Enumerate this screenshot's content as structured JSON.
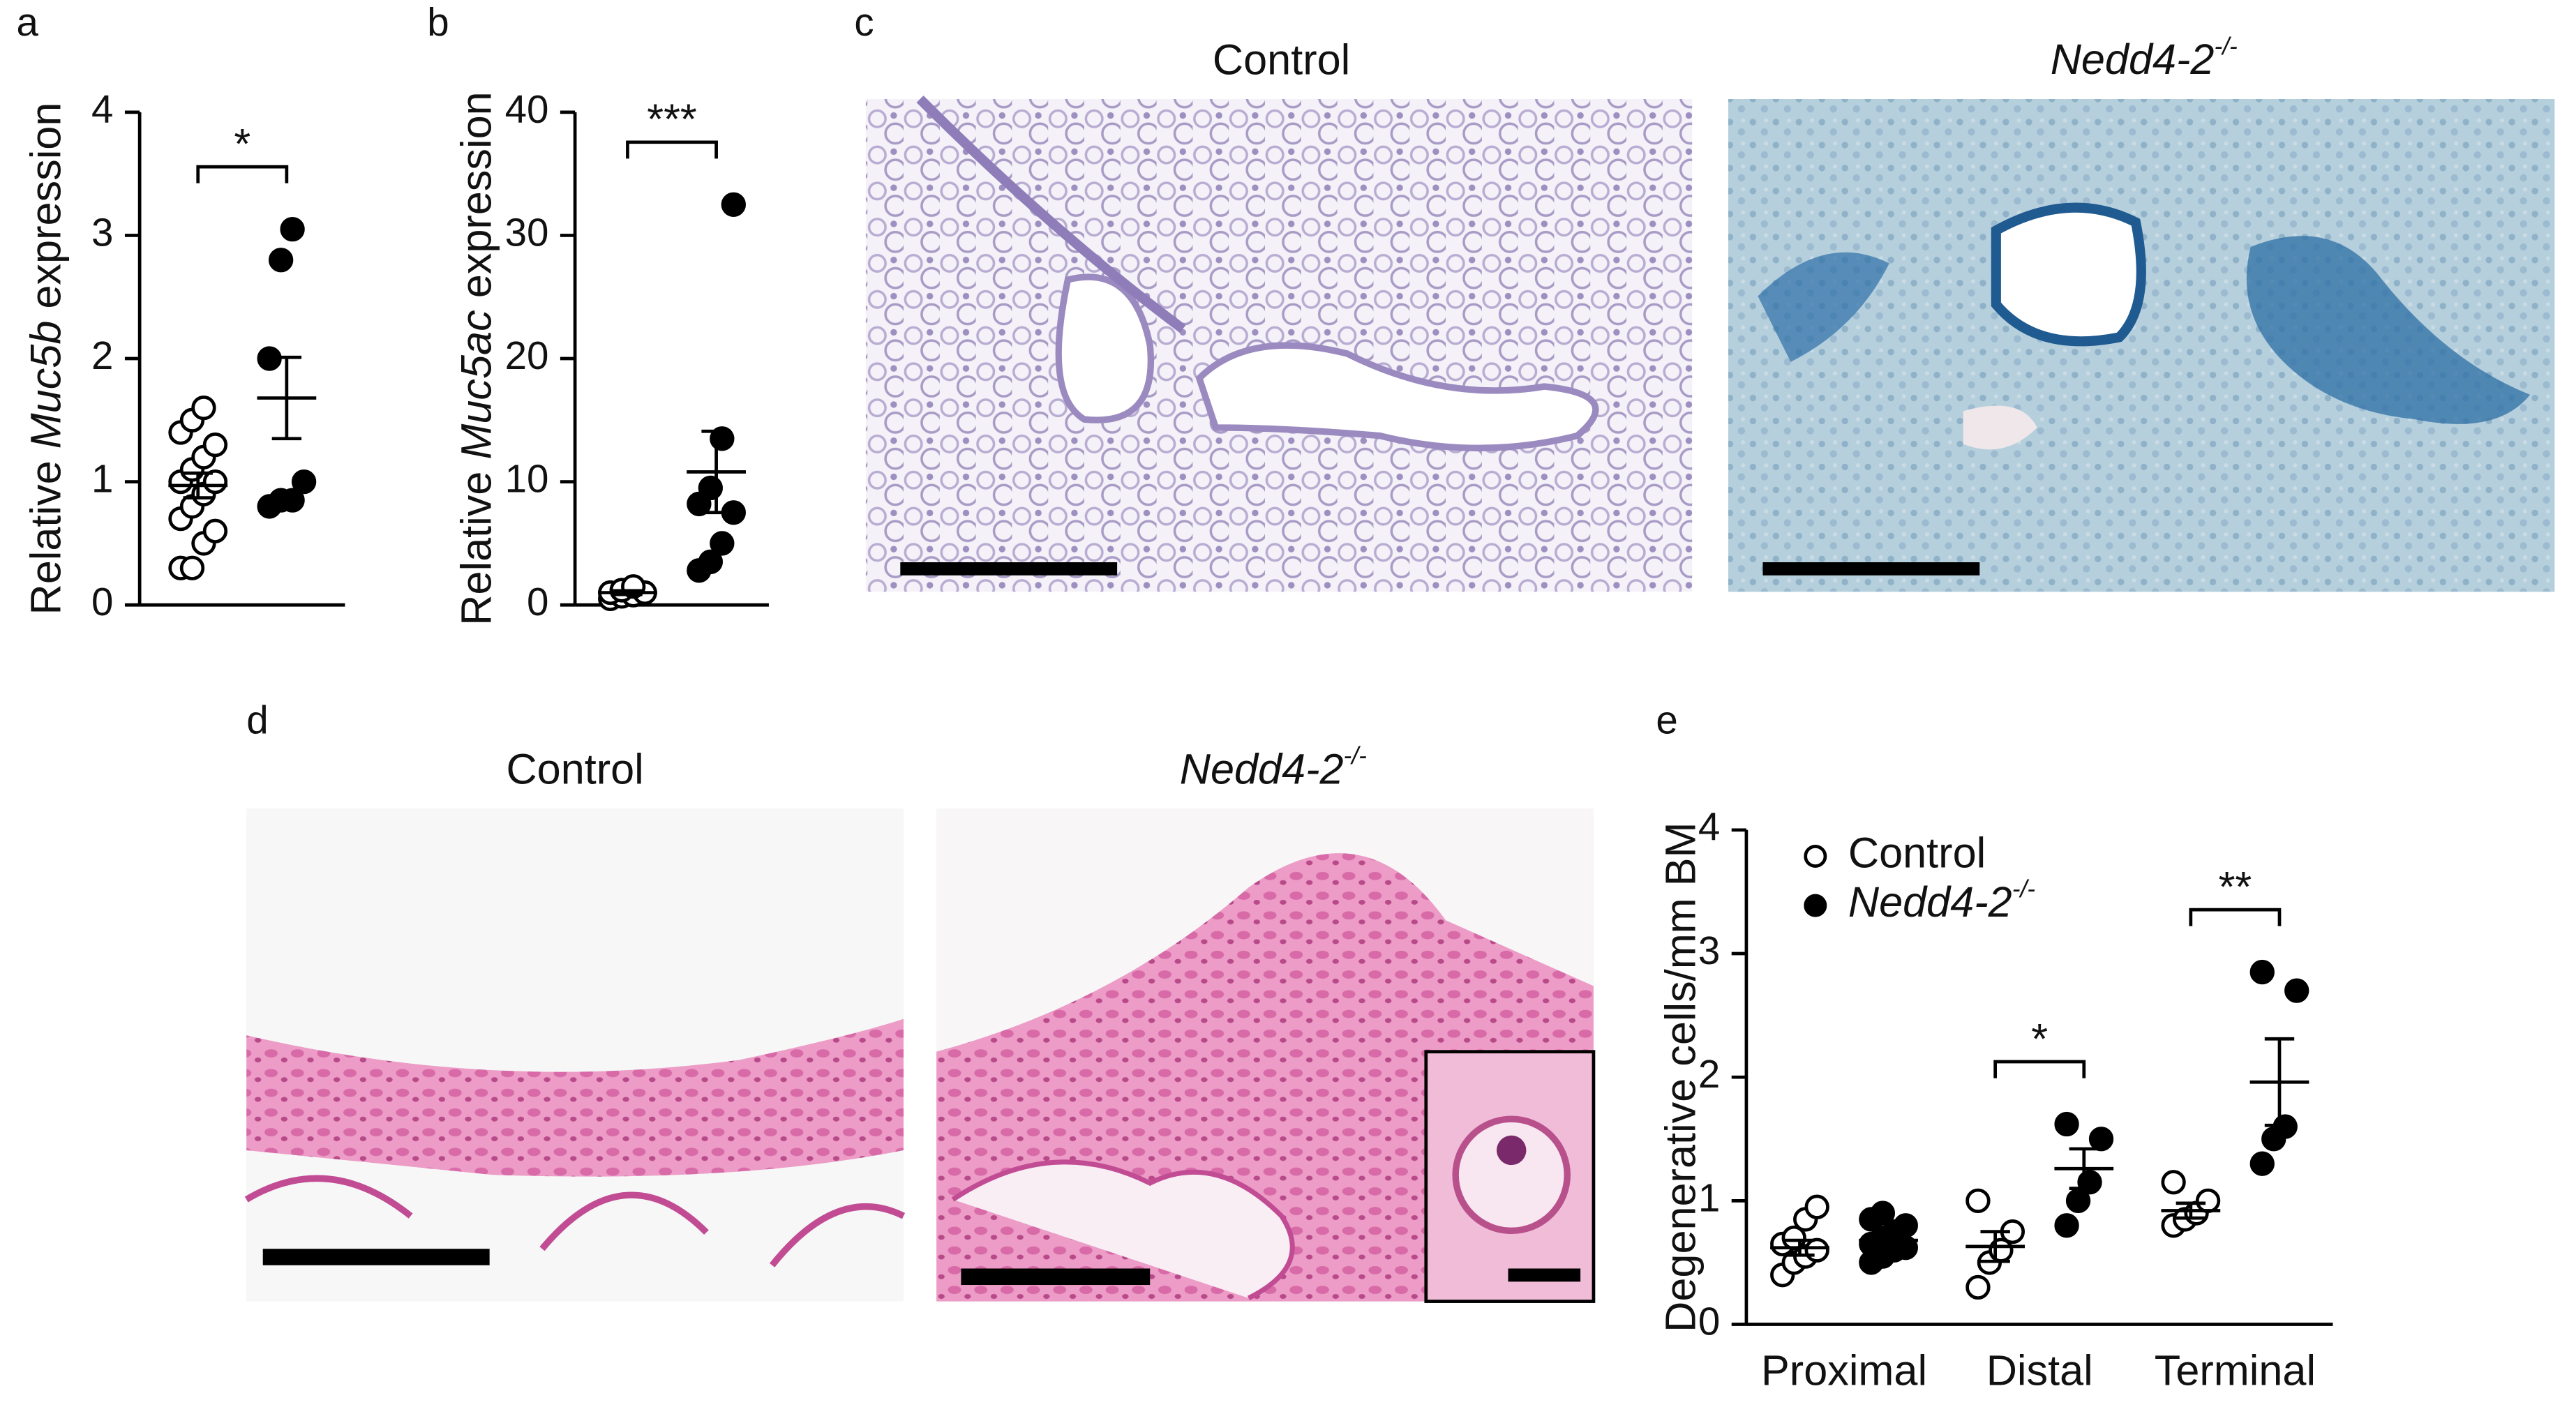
{
  "panel_labels": [
    "a",
    "b",
    "c",
    "d",
    "e"
  ],
  "images": {
    "c": {
      "titles": [
        "Control",
        "Nedd4-2-/-"
      ]
    },
    "d": {
      "titles": [
        "Control",
        "Nedd4-2-/-"
      ]
    }
  },
  "chart_data": [
    {
      "type": "dot",
      "y_label": "Relative Muc5b expression",
      "ylim": [
        0,
        4
      ],
      "yticks": [
        0,
        1,
        2,
        3,
        4
      ],
      "series": [
        {
          "fill": "#ffffff",
          "values": [
            [
              0.3,
              0.3,
              0.5,
              0.6,
              0.7,
              0.8,
              0.9,
              1.0,
              1.0,
              1.1,
              1.2,
              1.3,
              1.4,
              1.5,
              1.6
            ]
          ],
          "means": [
            0.97
          ],
          "sems": [
            0.1
          ]
        },
        {
          "fill": "#000000",
          "values": [
            [
              0.8,
              0.85,
              0.85,
              1.0,
              2.0,
              2.8,
              3.05
            ]
          ],
          "means": [
            1.68
          ],
          "sems": [
            0.33
          ]
        }
      ],
      "significance": [
        "*"
      ]
    },
    {
      "type": "dot",
      "y_label": "Relative Muc5ac expression",
      "ylim": [
        0,
        40
      ],
      "yticks": [
        0,
        10,
        20,
        30,
        40
      ],
      "series": [
        {
          "fill": "#ffffff",
          "values": [
            [
              0.5,
              0.7,
              0.8,
              1.0,
              1.0,
              1.2,
              1.5
            ]
          ],
          "means": [
            1.0
          ],
          "sems": [
            0.15
          ]
        },
        {
          "fill": "#000000",
          "values": [
            [
              2.8,
              3.5,
              5.0,
              7.5,
              8.2,
              9.5,
              13.5,
              32.5
            ]
          ],
          "means": [
            10.8
          ],
          "sems": [
            3.3
          ]
        }
      ],
      "significance": [
        "***"
      ]
    },
    {
      "type": "dot",
      "y_label": "Degenerative cells/mm BM",
      "ylim": [
        0,
        4
      ],
      "yticks": [
        0,
        1,
        2,
        3,
        4
      ],
      "categories": [
        "Proximal",
        "Distal",
        "Terminal"
      ],
      "series": [
        {
          "name": "Control",
          "fill": "#ffffff",
          "values": [
            [
              0.4,
              0.5,
              0.55,
              0.6,
              0.65,
              0.7,
              0.85,
              0.95
            ],
            [
              0.3,
              0.5,
              0.6,
              0.75,
              1.0
            ],
            [
              0.8,
              0.85,
              0.9,
              1.0,
              1.15
            ]
          ],
          "means": [
            0.62,
            0.63,
            0.92
          ],
          "sems": [
            0.06,
            0.12,
            0.06
          ]
        },
        {
          "name": "Nedd4-2-/-",
          "fill": "#000000",
          "values": [
            [
              0.5,
              0.55,
              0.6,
              0.62,
              0.65,
              0.7,
              0.75,
              0.8,
              0.85,
              0.9
            ],
            [
              0.8,
              1.0,
              1.15,
              1.5,
              1.62
            ],
            [
              1.3,
              1.5,
              1.6,
              2.7,
              2.85
            ]
          ],
          "means": [
            0.68,
            1.26,
            1.96
          ],
          "sems": [
            0.04,
            0.16,
            0.35
          ]
        }
      ],
      "significance": [
        null,
        "*",
        "**"
      ],
      "legend": "upper left"
    }
  ]
}
